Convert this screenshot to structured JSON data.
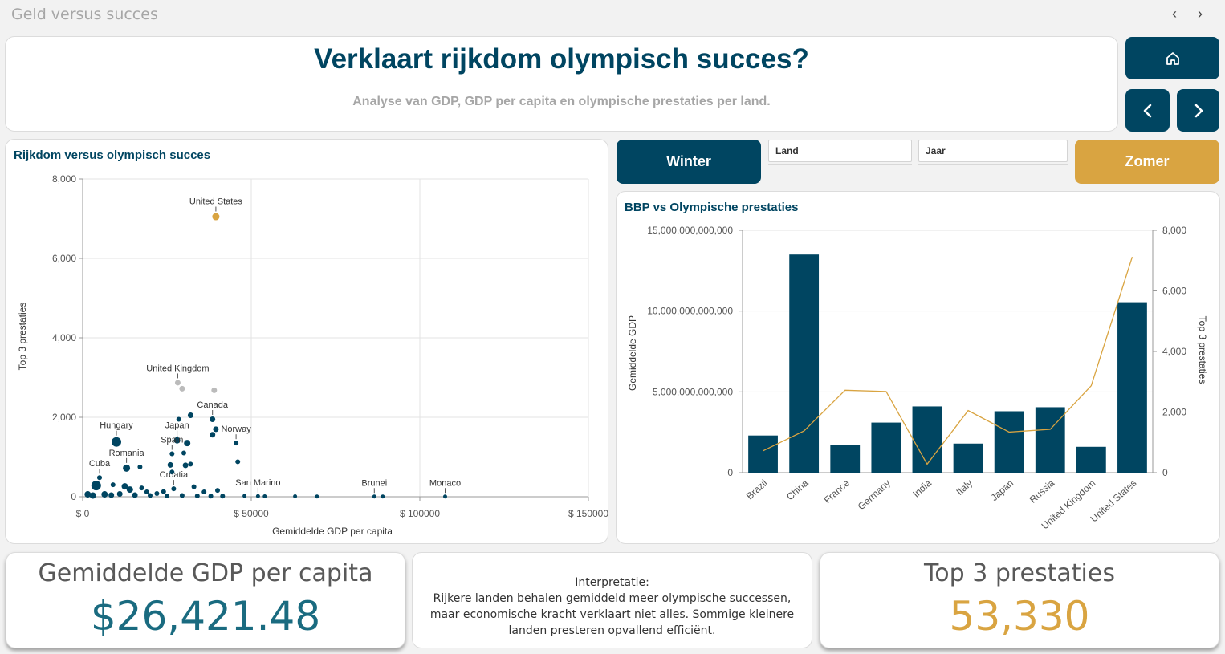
{
  "app": {
    "title": "Geld versus succes"
  },
  "header": {
    "title": "Verklaart rijkdom olympisch succes?",
    "subtitle": "Analyse van GDP, GDP per capita en olympische prestaties per land."
  },
  "nav": {
    "home_icon": "home-icon",
    "prev_icon": "chevron-left-icon",
    "next_icon": "chevron-right-icon"
  },
  "filters": {
    "winter_label": "Winter",
    "summer_label": "Zomer",
    "land_label": "Land",
    "jaar_label": "Jaar"
  },
  "colors": {
    "primary": "#004561",
    "accent": "#d9a441",
    "grey": "#a6a6a6"
  },
  "scatter": {
    "title": "Rijkdom versus olympisch succes",
    "chart_data": {
      "type": "scatter",
      "xlabel": "Gemiddelde GDP per capita",
      "ylabel": "Top 3 prestaties",
      "xlim": [
        0,
        150000
      ],
      "ylim": [
        0,
        8000
      ],
      "x_ticks": [
        "$ 0",
        "$ 50000",
        "$ 100000",
        "$ 150000"
      ],
      "y_ticks": [
        "0",
        "2,000",
        "4,000",
        "6,000",
        "8,000"
      ],
      "grid": true,
      "points": [
        {
          "label": "United States",
          "x": 39500,
          "y": 7050,
          "color": "#d9a441",
          "size": 4.5
        },
        {
          "label": "United Kingdom",
          "x": 28200,
          "y": 2870,
          "color": "#bbbbbb",
          "size": 3.5
        },
        {
          "label": "",
          "x": 29500,
          "y": 2720,
          "color": "#bbbbbb",
          "size": 3.5
        },
        {
          "label": "",
          "x": 39000,
          "y": 2680,
          "color": "#bbbbbb",
          "size": 3.5
        },
        {
          "label": "Canada",
          "x": 38500,
          "y": 1950,
          "color": "#004561",
          "size": 3.5
        },
        {
          "label": "Norway",
          "x": 45500,
          "y": 1350,
          "color": "#004561",
          "size": 3
        },
        {
          "label": "",
          "x": 46000,
          "y": 880,
          "color": "#004561",
          "size": 3
        },
        {
          "label": "",
          "x": 32000,
          "y": 2050,
          "color": "#004561",
          "size": 3.5
        },
        {
          "label": "",
          "x": 28500,
          "y": 1950,
          "color": "#004561",
          "size": 3
        },
        {
          "label": "",
          "x": 39500,
          "y": 1700,
          "color": "#004561",
          "size": 3.5
        },
        {
          "label": "",
          "x": 38500,
          "y": 1560,
          "color": "#004561",
          "size": 3.5
        },
        {
          "label": "Hungary",
          "x": 10000,
          "y": 1380,
          "color": "#004561",
          "size": 6
        },
        {
          "label": "Japan",
          "x": 28000,
          "y": 1420,
          "color": "#004561",
          "size": 4
        },
        {
          "label": "",
          "x": 31000,
          "y": 1350,
          "color": "#004561",
          "size": 4
        },
        {
          "label": "Spain",
          "x": 26500,
          "y": 1080,
          "color": "#004561",
          "size": 3
        },
        {
          "label": "",
          "x": 30000,
          "y": 1100,
          "color": "#004561",
          "size": 3
        },
        {
          "label": "",
          "x": 26000,
          "y": 800,
          "color": "#004561",
          "size": 3.5
        },
        {
          "label": "",
          "x": 30500,
          "y": 790,
          "color": "#004561",
          "size": 3.5
        },
        {
          "label": "",
          "x": 32000,
          "y": 820,
          "color": "#004561",
          "size": 3
        },
        {
          "label": "Romania",
          "x": 13000,
          "y": 720,
          "color": "#004561",
          "size": 4.5
        },
        {
          "label": "",
          "x": 17000,
          "y": 750,
          "color": "#004561",
          "size": 3
        },
        {
          "label": "",
          "x": 26500,
          "y": 620,
          "color": "#004561",
          "size": 3
        },
        {
          "label": "Cuba",
          "x": 5000,
          "y": 480,
          "color": "#004561",
          "size": 3
        },
        {
          "label": "",
          "x": 4000,
          "y": 280,
          "color": "#004561",
          "size": 6
        },
        {
          "label": "",
          "x": 12500,
          "y": 260,
          "color": "#004561",
          "size": 4
        },
        {
          "label": "",
          "x": 14000,
          "y": 180,
          "color": "#004561",
          "size": 4
        },
        {
          "label": "",
          "x": 17500,
          "y": 220,
          "color": "#004561",
          "size": 3
        },
        {
          "label": "",
          "x": 9000,
          "y": 300,
          "color": "#004561",
          "size": 3
        },
        {
          "label": "",
          "x": 19000,
          "y": 120,
          "color": "#004561",
          "size": 3
        },
        {
          "label": "Croatia",
          "x": 27000,
          "y": 200,
          "color": "#004561",
          "size": 3
        },
        {
          "label": "",
          "x": 33000,
          "y": 250,
          "color": "#004561",
          "size": 3
        },
        {
          "label": "",
          "x": 36000,
          "y": 120,
          "color": "#004561",
          "size": 3
        },
        {
          "label": "",
          "x": 40000,
          "y": 160,
          "color": "#004561",
          "size": 3
        },
        {
          "label": "",
          "x": 22000,
          "y": 80,
          "color": "#004561",
          "size": 3
        },
        {
          "label": "",
          "x": 24000,
          "y": 130,
          "color": "#004561",
          "size": 3
        },
        {
          "label": "",
          "x": 1500,
          "y": 60,
          "color": "#004561",
          "size": 4
        },
        {
          "label": "",
          "x": 3000,
          "y": 30,
          "color": "#004561",
          "size": 4
        },
        {
          "label": "",
          "x": 6500,
          "y": 60,
          "color": "#004561",
          "size": 4
        },
        {
          "label": "",
          "x": 8500,
          "y": 40,
          "color": "#004561",
          "size": 3.5
        },
        {
          "label": "",
          "x": 11000,
          "y": 70,
          "color": "#004561",
          "size": 3.5
        },
        {
          "label": "",
          "x": 15500,
          "y": 40,
          "color": "#004561",
          "size": 3.5
        },
        {
          "label": "",
          "x": 20000,
          "y": 30,
          "color": "#004561",
          "size": 3
        },
        {
          "label": "",
          "x": 25000,
          "y": 20,
          "color": "#004561",
          "size": 3
        },
        {
          "label": "",
          "x": 29500,
          "y": 30,
          "color": "#004561",
          "size": 3
        },
        {
          "label": "",
          "x": 34000,
          "y": 20,
          "color": "#004561",
          "size": 3
        },
        {
          "label": "",
          "x": 38000,
          "y": 15,
          "color": "#004561",
          "size": 3
        },
        {
          "label": "",
          "x": 41500,
          "y": 15,
          "color": "#004561",
          "size": 3
        },
        {
          "label": "San Marino",
          "x": 52000,
          "y": 15,
          "color": "#004561",
          "size": 2.5
        },
        {
          "label": "",
          "x": 48000,
          "y": 20,
          "color": "#004561",
          "size": 2.5
        },
        {
          "label": "",
          "x": 54000,
          "y": 10,
          "color": "#004561",
          "size": 2.5
        },
        {
          "label": "",
          "x": 63000,
          "y": 10,
          "color": "#004561",
          "size": 2.5
        },
        {
          "label": "",
          "x": 69500,
          "y": 5,
          "color": "#004561",
          "size": 2.5
        },
        {
          "label": "Brunei",
          "x": 86500,
          "y": 5,
          "color": "#004561",
          "size": 2.5
        },
        {
          "label": "",
          "x": 89000,
          "y": 5,
          "color": "#004561",
          "size": 2.5
        },
        {
          "label": "Monaco",
          "x": 107500,
          "y": 5,
          "color": "#004561",
          "size": 2.5
        }
      ]
    }
  },
  "combo": {
    "title": "BBP vs Olympische prestaties",
    "chart_data": {
      "type": "bar",
      "categories": [
        "Brazil",
        "China",
        "France",
        "Germany",
        "India",
        "Italy",
        "Japan",
        "Russia",
        "United Kingdom",
        "United States"
      ],
      "series": [
        {
          "name": "Gemiddelde GDP",
          "type": "bar",
          "axis": "left",
          "values": [
            2300000000000,
            13500000000000,
            1700000000000,
            3100000000000,
            4100000000000,
            1800000000000,
            3800000000000,
            4050000000000,
            1600000000000,
            10550000000000
          ]
        },
        {
          "name": "Top 3 prestaties",
          "type": "line",
          "axis": "right",
          "values": [
            720,
            1380,
            2720,
            2680,
            280,
            2050,
            1340,
            1430,
            2870,
            7120
          ]
        }
      ],
      "ylabel": "Gemiddelde GDP",
      "y2label": "Top 3 prestaties",
      "ylim": [
        0,
        15000000000000
      ],
      "y2lim": [
        0,
        8000
      ],
      "y_ticks": [
        "0",
        "5,000,000,000,000",
        "10,000,000,000,000",
        "15,000,000,000,000"
      ],
      "y2_ticks": [
        "0",
        "2,000",
        "4,000",
        "6,000",
        "8,000"
      ],
      "bar_color": "#004561",
      "line_color": "#d9a441"
    }
  },
  "kpis": {
    "gdp_label": "Gemiddelde GDP per capita",
    "gdp_value": "$26,421.48",
    "top3_label": "Top 3 prestaties",
    "top3_value": "53,330"
  },
  "interpretation": {
    "heading": "Interpretatie:",
    "text": "Rijkere landen behalen gemiddeld meer olympische successen, maar economische kracht verklaart niet alles. Sommige kleinere landen presteren opvallend efficiënt."
  }
}
